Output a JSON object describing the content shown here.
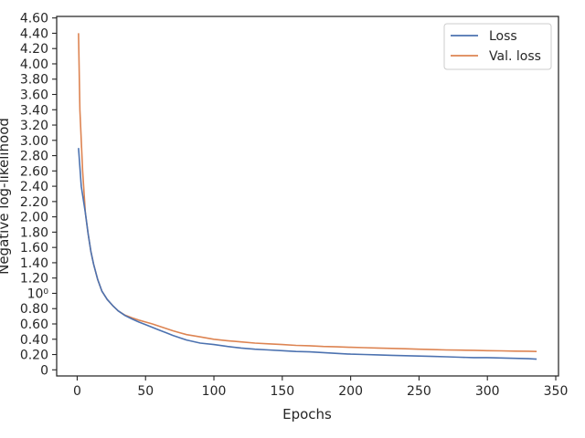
{
  "chart_data": {
    "type": "line",
    "xlabel": "Epochs",
    "ylabel": "Negative log-likelihood",
    "xlim": [
      -15,
      352
    ],
    "ylim": [
      -0.08,
      4.62
    ],
    "grid": false,
    "legend_position": "top-right",
    "x_ticks": [
      0,
      50,
      100,
      150,
      200,
      250,
      300,
      350
    ],
    "x_tick_labels": [
      "0",
      "50",
      "100",
      "150",
      "200",
      "250",
      "300",
      "350"
    ],
    "y_ticks": [
      0,
      0.2,
      0.4,
      0.6,
      0.8,
      1.0,
      1.2,
      1.4,
      1.6,
      1.8,
      2.0,
      2.2,
      2.4,
      2.6,
      2.8,
      3.0,
      3.2,
      3.4,
      3.6,
      3.8,
      4.0,
      4.2,
      4.4,
      4.6
    ],
    "y_tick_labels": [
      "0",
      "0.20",
      "0.40",
      "0.60",
      "0.80",
      "10⁰",
      "1.20",
      "1.40",
      "1.60",
      "1.80",
      "2.00",
      "2.20",
      "2.40",
      "2.60",
      "2.80",
      "3.00",
      "3.20",
      "3.40",
      "3.60",
      "3.80",
      "4.00",
      "4.20",
      "4.40",
      "4.60"
    ],
    "series": [
      {
        "name": "Loss",
        "color": "#4c72b0",
        "x": [
          1,
          3,
          6,
          8,
          10,
          12,
          15,
          18,
          22,
          26,
          30,
          35,
          40,
          45,
          50,
          55,
          60,
          65,
          70,
          75,
          80,
          90,
          100,
          110,
          120,
          130,
          140,
          150,
          160,
          170,
          180,
          190,
          200,
          210,
          220,
          230,
          240,
          250,
          260,
          270,
          280,
          290,
          300,
          310,
          320,
          330,
          336
        ],
        "y": [
          2.9,
          2.4,
          2.05,
          1.78,
          1.55,
          1.38,
          1.18,
          1.03,
          0.92,
          0.84,
          0.77,
          0.71,
          0.665,
          0.625,
          0.59,
          0.555,
          0.52,
          0.485,
          0.45,
          0.42,
          0.39,
          0.35,
          0.33,
          0.305,
          0.285,
          0.27,
          0.26,
          0.25,
          0.24,
          0.235,
          0.225,
          0.215,
          0.205,
          0.2,
          0.195,
          0.19,
          0.185,
          0.18,
          0.175,
          0.17,
          0.165,
          0.16,
          0.16,
          0.155,
          0.15,
          0.145,
          0.14
        ]
      },
      {
        "name": "Val. loss",
        "color": "#dd8452",
        "x": [
          1,
          2,
          4,
          6,
          8,
          10,
          12,
          15,
          18,
          22,
          26,
          30,
          35,
          40,
          45,
          50,
          55,
          60,
          65,
          70,
          75,
          80,
          90,
          100,
          110,
          120,
          130,
          140,
          150,
          160,
          170,
          180,
          190,
          200,
          210,
          220,
          230,
          240,
          250,
          260,
          270,
          280,
          290,
          300,
          310,
          320,
          330,
          336
        ],
        "y": [
          4.4,
          3.4,
          2.6,
          2.05,
          1.78,
          1.55,
          1.38,
          1.18,
          1.03,
          0.92,
          0.84,
          0.77,
          0.715,
          0.68,
          0.65,
          0.625,
          0.6,
          0.57,
          0.54,
          0.51,
          0.485,
          0.46,
          0.43,
          0.4,
          0.38,
          0.365,
          0.35,
          0.34,
          0.33,
          0.32,
          0.315,
          0.305,
          0.3,
          0.295,
          0.29,
          0.285,
          0.28,
          0.275,
          0.27,
          0.265,
          0.26,
          0.258,
          0.255,
          0.25,
          0.248,
          0.245,
          0.243,
          0.24
        ]
      }
    ]
  }
}
